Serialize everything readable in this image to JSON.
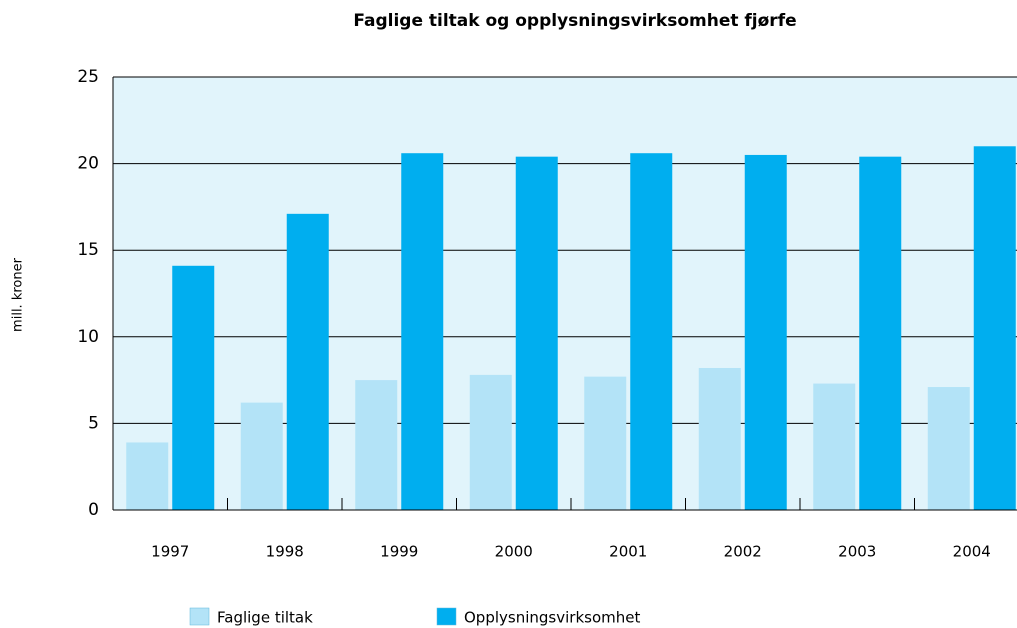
{
  "chart_data": {
    "type": "bar",
    "title": "Faglige tiltak og opplysningsvirksomhet fjørfe",
    "y_label": "mill. kroner",
    "categories": [
      "1997",
      "1998",
      "1999",
      "2000",
      "2001",
      "2002",
      "2003",
      "2004"
    ],
    "series": [
      {
        "name": "Faglige tiltak",
        "color": "#b3e3f7",
        "values": [
          3.9,
          6.2,
          7.5,
          7.8,
          7.7,
          8.2,
          7.3,
          7.1
        ]
      },
      {
        "name": "Opplysningsvirksomhet",
        "color": "#00aeef",
        "values": [
          14.1,
          17.1,
          20.6,
          20.4,
          20.6,
          20.5,
          20.4,
          21.0
        ]
      }
    ],
    "ylim": [
      0,
      25
    ],
    "yticks": [
      0,
      5,
      10,
      15,
      20,
      25
    ],
    "grid": true,
    "legend": "bottom"
  }
}
